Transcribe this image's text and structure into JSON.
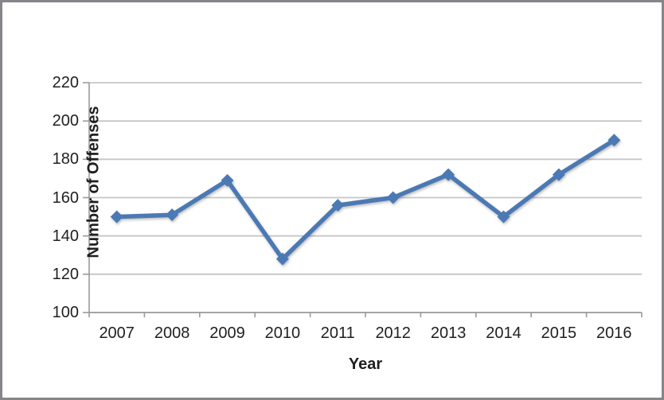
{
  "chart_data": {
    "type": "line",
    "title": "",
    "xlabel": "Year",
    "ylabel": "Number of Offenses",
    "categories": [
      "2007",
      "2008",
      "2009",
      "2010",
      "2011",
      "2012",
      "2013",
      "2014",
      "2015",
      "2016"
    ],
    "series": [
      {
        "name": "Number of Offenses",
        "values": [
          150,
          151,
          169,
          128,
          156,
          160,
          172,
          150,
          172,
          190
        ]
      }
    ],
    "ylim": [
      100,
      220
    ],
    "yticks": [
      100,
      120,
      140,
      160,
      180,
      200,
      220
    ],
    "grid": "horizontal-only",
    "legend_position": "none",
    "marker": "diamond"
  },
  "colors": {
    "line": "#4b79b4",
    "gridline": "#c6c6ca",
    "axis": "#9a9a9a",
    "text": "#1f1f1f",
    "frame": "#85858a",
    "background": "#ffffff"
  }
}
